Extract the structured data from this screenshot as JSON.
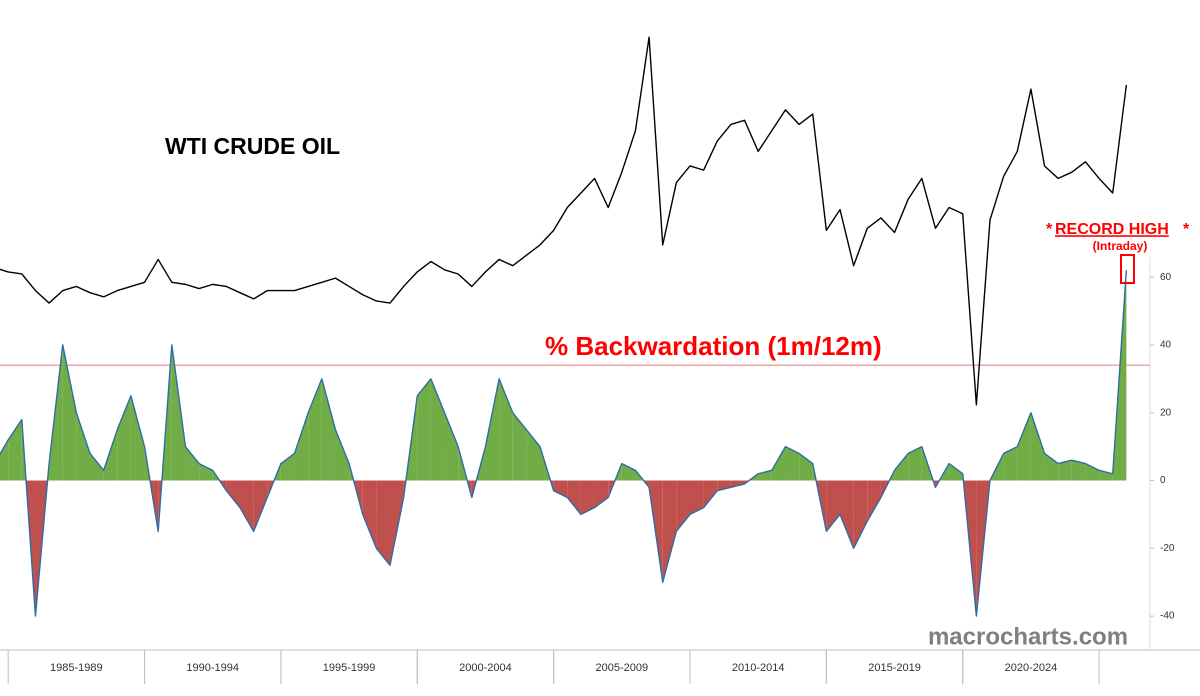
{
  "chart_data": {
    "type": "line-area",
    "annotations": {
      "record": "RECORD HIGH",
      "star": "*",
      "intraday": "(Intraday)",
      "watermark": "macrocharts.com"
    },
    "x": [
      1984.5,
      1985.0,
      1985.5,
      1986.0,
      1986.5,
      1987.0,
      1987.5,
      1988.0,
      1988.5,
      1989.0,
      1989.5,
      1990.0,
      1990.5,
      1991.0,
      1991.5,
      1992.0,
      1992.5,
      1993.0,
      1993.5,
      1994.0,
      1994.5,
      1995.0,
      1995.5,
      1996.0,
      1996.5,
      1997.0,
      1997.5,
      1998.0,
      1998.5,
      1999.0,
      1999.5,
      2000.0,
      2000.5,
      2001.0,
      2001.5,
      2002.0,
      2002.5,
      2003.0,
      2003.5,
      2004.0,
      2004.5,
      2005.0,
      2005.5,
      2006.0,
      2006.5,
      2007.0,
      2007.5,
      2008.0,
      2008.5,
      2009.0,
      2009.5,
      2010.0,
      2010.5,
      2011.0,
      2011.5,
      2012.0,
      2012.5,
      2013.0,
      2013.5,
      2014.0,
      2014.5,
      2015.0,
      2015.5,
      2016.0,
      2016.5,
      2017.0,
      2017.5,
      2018.0,
      2018.5,
      2019.0,
      2019.5,
      2020.0,
      2020.5,
      2021.0,
      2021.5,
      2022.0,
      2022.5,
      2023.0,
      2023.5,
      2024.0,
      2024.5,
      2025.0,
      2025.5,
      2026.0
    ],
    "xlim": [
      1984.7,
      2028.7
    ],
    "xticks": [
      {
        "value": 1987.5,
        "label": "1985-1989"
      },
      {
        "value": 1992.5,
        "label": "1990-1994"
      },
      {
        "value": 1997.5,
        "label": "1995-1999"
      },
      {
        "value": 2002.5,
        "label": "2000-2004"
      },
      {
        "value": 2007.5,
        "label": "2005-2009"
      },
      {
        "value": 2012.5,
        "label": "2010-2014"
      },
      {
        "value": 2017.5,
        "label": "2015-2019"
      },
      {
        "value": 2022.5,
        "label": "2020-2024"
      }
    ],
    "ylim": [
      -50,
      140
    ],
    "yticks": [
      -40,
      -20,
      0,
      20,
      40,
      60
    ],
    "y2lim": [
      -155,
      155
    ],
    "ref_line": 34,
    "ref_color": "#f4a6a6",
    "positive_color": "#70ad47",
    "negative_color": "#c0504d",
    "series": [
      {
        "name": "WTI CRUDE OIL",
        "color": "#000000",
        "axis": "y2",
        "values": [
          29,
          27,
          26,
          18,
          12,
          18,
          20,
          17,
          15,
          18,
          20,
          22,
          33,
          22,
          21,
          19,
          21,
          20,
          17,
          14,
          18,
          18,
          18,
          20,
          22,
          24,
          20,
          16,
          13,
          12,
          20,
          27,
          32,
          28,
          26,
          20,
          27,
          33,
          30,
          35,
          40,
          47,
          58,
          65,
          72,
          58,
          75,
          95,
          140,
          40,
          70,
          78,
          76,
          90,
          98,
          100,
          85,
          95,
          105,
          98,
          103,
          47,
          57,
          30,
          48,
          53,
          46,
          62,
          72,
          48,
          58,
          55,
          -37,
          52,
          73,
          85,
          115,
          78,
          72,
          75,
          80,
          72,
          65,
          117
        ]
      },
      {
        "name": "% Backwardation (1m/12m)",
        "color": "#2e6da4",
        "values": [
          5,
          12,
          18,
          -40,
          5,
          40,
          20,
          8,
          3,
          15,
          25,
          10,
          -15,
          40,
          10,
          5,
          3,
          -3,
          -8,
          -15,
          -5,
          5,
          8,
          20,
          30,
          15,
          5,
          -10,
          -20,
          -25,
          -5,
          25,
          30,
          20,
          10,
          -5,
          10,
          30,
          20,
          15,
          10,
          -3,
          -5,
          -10,
          -8,
          -5,
          5,
          3,
          -2,
          -30,
          -15,
          -10,
          -8,
          -3,
          -2,
          -1,
          2,
          3,
          10,
          8,
          5,
          -15,
          -10,
          -20,
          -12,
          -5,
          3,
          8,
          10,
          -2,
          5,
          2,
          -40,
          0,
          8,
          10,
          20,
          8,
          5,
          6,
          5,
          3,
          2,
          62
        ]
      }
    ]
  }
}
